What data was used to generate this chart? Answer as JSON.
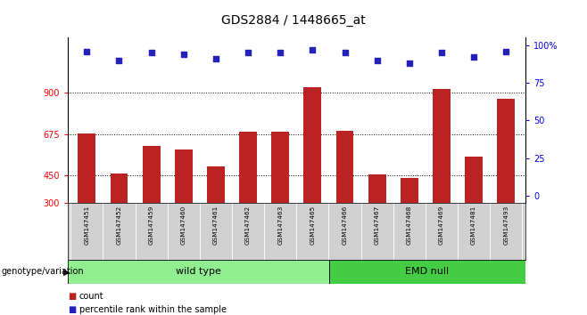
{
  "title": "GDS2884 / 1448665_at",
  "samples": [
    "GSM147451",
    "GSM147452",
    "GSM147459",
    "GSM147460",
    "GSM147461",
    "GSM147462",
    "GSM147463",
    "GSM147465",
    "GSM147466",
    "GSM147467",
    "GSM147468",
    "GSM147469",
    "GSM147481",
    "GSM147493"
  ],
  "counts": [
    680,
    460,
    610,
    590,
    500,
    690,
    690,
    930,
    695,
    455,
    435,
    920,
    555,
    870
  ],
  "percentiles": [
    96,
    90,
    95,
    94,
    91,
    95,
    95,
    97,
    95,
    90,
    88,
    95,
    92,
    96
  ],
  "y_min": 300,
  "y_max": 1200,
  "y_ticks": [
    300,
    450,
    675,
    900
  ],
  "y_tick_labels": [
    "300",
    "450",
    "675",
    "900"
  ],
  "right_y_ticks": [
    0,
    25,
    50,
    75,
    100
  ],
  "right_y_tick_labels": [
    "0",
    "25",
    "50",
    "75",
    "100%"
  ],
  "bar_color": "#bb2222",
  "dot_color": "#2222bb",
  "n_wild_type": 8,
  "n_emd_null": 6,
  "group_label_wt": "wild type",
  "group_label_emd": "EMD null",
  "genotype_label": "genotype/variation",
  "legend_count": "count",
  "legend_percentile": "percentile rank within the sample",
  "wt_bg": "#90ee90",
  "emd_bg": "#44cc44",
  "label_bg": "#d0d0d0",
  "dotted_lines": [
    450,
    675,
    900
  ],
  "count_base": 300,
  "pct_ylim_min": -5,
  "pct_ylim_max": 105
}
